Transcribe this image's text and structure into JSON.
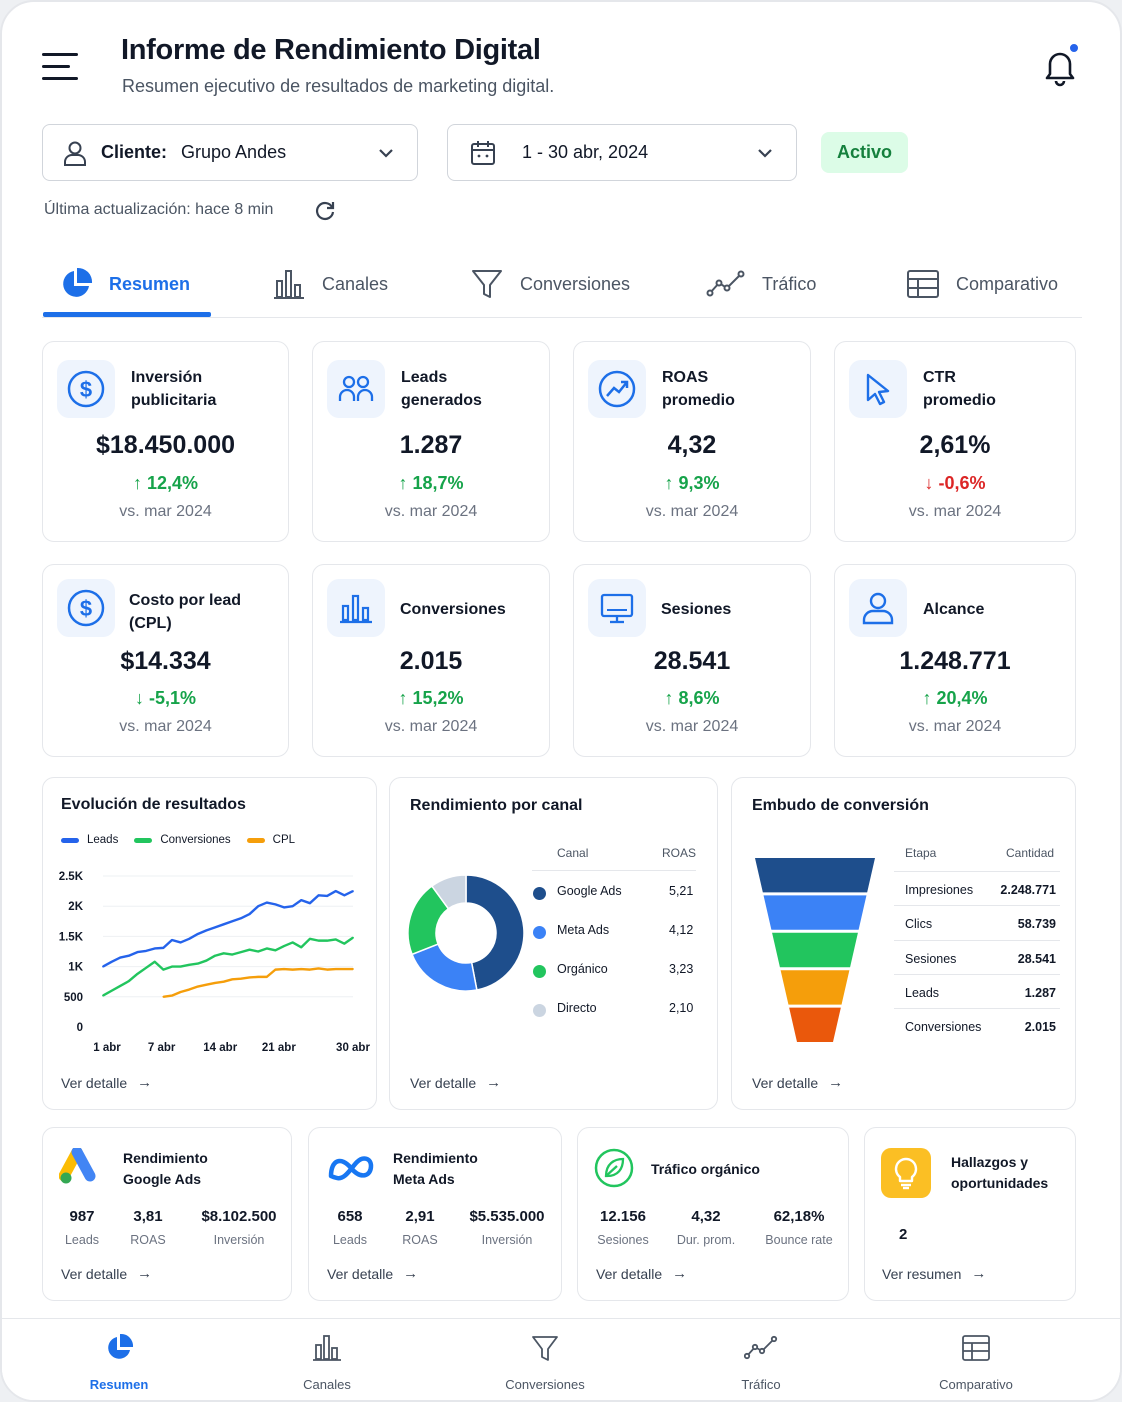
{
  "header": {
    "title": "Informe de Rendimiento Digital",
    "subtitle": "Resumen ejecutivo de resultados de marketing digital."
  },
  "filters": {
    "client_label": "Cliente:",
    "client_value": "Grupo Andes",
    "date_value": "1 - 30 abr, 2024",
    "status_badge": "Activo",
    "last_updated": "Última actualización: hace 8 min"
  },
  "tabs": [
    {
      "label": "Resumen",
      "icon": "pie-chart-icon",
      "active": true
    },
    {
      "label": "Canales",
      "icon": "bar-chart-icon",
      "active": false
    },
    {
      "label": "Conversiones",
      "icon": "funnel-icon",
      "active": false
    },
    {
      "label": "Tráfico",
      "icon": "line-trend-icon",
      "active": false
    },
    {
      "label": "Comparativo",
      "icon": "table-icon",
      "active": false
    }
  ],
  "kpis": [
    {
      "label_line1": "Inversión",
      "label_line2": "publicitaria",
      "value": "$18.450.000",
      "delta": "12,4%",
      "direction": "up",
      "comparison": "vs. mar 2024",
      "icon": "dollar-icon"
    },
    {
      "label_line1": "Leads",
      "label_line2": "generados",
      "value": "1.287",
      "delta": "18,7%",
      "direction": "up",
      "comparison": "vs. mar 2024",
      "icon": "users-icon"
    },
    {
      "label_line1": "ROAS",
      "label_line2": "promedio",
      "value": "4,32",
      "delta": "9,3%",
      "direction": "up",
      "comparison": "vs. mar 2024",
      "icon": "trend-up-icon"
    },
    {
      "label_line1": "CTR",
      "label_line2": "promedio",
      "value": "2,61%",
      "delta": "-0,6%",
      "direction": "down",
      "comparison": "vs. mar 2024",
      "icon": "cursor-icon"
    },
    {
      "label_line1": "Costo por lead",
      "label_line2": "(CPL)",
      "value": "$14.334",
      "delta": "-5,1%",
      "direction": "down-good",
      "comparison": "vs. mar 2024",
      "icon": "dollar-icon"
    },
    {
      "label_line1": "Conversiones",
      "label_line2": "",
      "value": "2.015",
      "delta": "15,2%",
      "direction": "up",
      "comparison": "vs. mar 2024",
      "icon": "bar-chart-icon"
    },
    {
      "label_line1": "Sesiones",
      "label_line2": "",
      "value": "28.541",
      "delta": "8,6%",
      "direction": "up",
      "comparison": "vs. mar 2024",
      "icon": "monitor-icon"
    },
    {
      "label_line1": "Alcance",
      "label_line2": "",
      "value": "1.248.771",
      "delta": "20,4%",
      "direction": "up",
      "comparison": "vs. mar 2024",
      "icon": "user-icon"
    }
  ],
  "evolution": {
    "title": "Evolución de resultados",
    "link": "Ver detalle"
  },
  "channel": {
    "title": "Rendimiento por canal",
    "col_channel": "Canal",
    "col_roas": "ROAS",
    "link": "Ver detalle",
    "rows": [
      {
        "name": "Google Ads",
        "roas": "5,21",
        "color": "#1e4e8c"
      },
      {
        "name": "Meta Ads",
        "roas": "4,12",
        "color": "#3b82f6"
      },
      {
        "name": "Orgánico",
        "roas": "3,23",
        "color": "#22c55e"
      },
      {
        "name": "Directo",
        "roas": "2,10",
        "color": "#cbd5e1"
      }
    ]
  },
  "funnel": {
    "title": "Embudo de conversión",
    "col_stage": "Etapa",
    "col_qty": "Cantidad",
    "link": "Ver detalle",
    "rows": [
      {
        "stage": "Impresiones",
        "qty": "2.248.771",
        "color": "#1e4e8c"
      },
      {
        "stage": "Clics",
        "qty": "58.739",
        "color": "#3b82f6"
      },
      {
        "stage": "Sesiones",
        "qty": "28.541",
        "color": "#22c55e"
      },
      {
        "stage": "Leads",
        "qty": "1.287",
        "color": "#f59e0b"
      },
      {
        "stage": "Conversiones",
        "qty": "2.015",
        "color": "#ea580c"
      }
    ]
  },
  "mini_cards": [
    {
      "title_line1": "Rendimiento",
      "title_line2": "Google Ads",
      "icon": "google-ads-icon",
      "link": "Ver detalle",
      "stats": [
        {
          "v": "987",
          "k": "Leads"
        },
        {
          "v": "3,81",
          "k": "ROAS"
        },
        {
          "v": "$8.102.500",
          "k": "Inversión"
        }
      ]
    },
    {
      "title_line1": "Rendimiento",
      "title_line2": "Meta Ads",
      "icon": "meta-icon",
      "link": "Ver detalle",
      "stats": [
        {
          "v": "658",
          "k": "Leads"
        },
        {
          "v": "2,91",
          "k": "ROAS"
        },
        {
          "v": "$5.535.000",
          "k": "Inversión"
        }
      ]
    },
    {
      "title_line1": "Tráfico orgánico",
      "title_line2": "",
      "icon": "leaf-icon",
      "link": "Ver detalle",
      "stats": [
        {
          "v": "12.156",
          "k": "Sesiones"
        },
        {
          "v": "4,32",
          "k": "Dur. prom."
        },
        {
          "v": "62,18%",
          "k": "Bounce rate"
        }
      ]
    },
    {
      "title_line1": "Hallazgos y",
      "title_line2": "oportunidades",
      "icon": "lightbulb-icon",
      "link": "Ver resumen",
      "count": "2"
    }
  ],
  "bottom_nav": [
    {
      "label": "Resumen",
      "active": true
    },
    {
      "label": "Canales",
      "active": false
    },
    {
      "label": "Conversiones",
      "active": false
    },
    {
      "label": "Tráfico",
      "active": false
    },
    {
      "label": "Comparativo",
      "active": false
    }
  ],
  "colors": {
    "accent": "#1d6fe8",
    "positive": "#16a34a",
    "negative": "#dc2626"
  },
  "chart_data": [
    {
      "type": "line",
      "title": "Evolución de resultados",
      "x_ticks": [
        "1 abr",
        "7 abr",
        "14 abr",
        "21 abr",
        "30 abr"
      ],
      "y_ticks": [
        "2.5K",
        "2K",
        "1.5K",
        "1K",
        "500",
        "0"
      ],
      "ylim": [
        0,
        2500
      ],
      "xlim": [
        1,
        30
      ],
      "grid": "horizontal",
      "legend_position": "top-left",
      "series": [
        {
          "name": "Leads",
          "color": "#2563eb",
          "x": [
            1,
            2,
            3,
            4,
            5,
            6,
            7,
            8,
            9,
            10,
            11,
            12,
            13,
            14,
            15,
            16,
            17,
            18,
            19,
            20,
            21,
            22,
            23,
            24,
            25,
            26,
            27,
            28,
            29,
            30
          ],
          "y": [
            1000,
            1080,
            1150,
            1180,
            1240,
            1260,
            1300,
            1310,
            1440,
            1400,
            1460,
            1540,
            1600,
            1650,
            1700,
            1750,
            1800,
            1870,
            2000,
            2060,
            2030,
            1980,
            2000,
            2100,
            2050,
            2180,
            2170,
            2250,
            2180,
            2250
          ]
        },
        {
          "name": "Conversiones",
          "color": "#22c55e",
          "x": [
            1,
            2,
            3,
            4,
            5,
            6,
            7,
            8,
            9,
            10,
            11,
            12,
            13,
            14,
            15,
            16,
            17,
            18,
            19,
            20,
            21,
            22,
            23,
            24,
            25,
            26,
            27,
            28,
            29,
            30
          ],
          "y": [
            520,
            600,
            680,
            760,
            880,
            980,
            1080,
            950,
            1000,
            1000,
            1030,
            1050,
            1100,
            1180,
            1220,
            1200,
            1240,
            1280,
            1250,
            1300,
            1270,
            1340,
            1400,
            1320,
            1460,
            1430,
            1430,
            1450,
            1380,
            1480
          ]
        },
        {
          "name": "CPL",
          "color": "#f59e0b",
          "x": [
            8,
            9,
            10,
            11,
            12,
            13,
            14,
            15,
            16,
            17,
            18,
            19,
            20,
            21,
            22,
            23,
            24,
            25,
            26,
            27,
            28,
            29,
            30
          ],
          "y": [
            500,
            520,
            580,
            620,
            670,
            700,
            730,
            750,
            790,
            800,
            820,
            830,
            830,
            950,
            960,
            950,
            960,
            950,
            970,
            950,
            960,
            960,
            960
          ]
        }
      ]
    },
    {
      "type": "pie",
      "title": "Rendimiento por canal",
      "categories": [
        "Google Ads",
        "Meta Ads",
        "Orgánico",
        "Directo"
      ],
      "values": [
        47,
        22,
        21,
        10
      ]
    },
    {
      "type": "bar",
      "title": "Embudo de conversión",
      "categories": [
        "Impresiones",
        "Clics",
        "Sesiones",
        "Leads",
        "Conversiones"
      ],
      "values": [
        2248771,
        58739,
        28541,
        1287,
        2015
      ]
    }
  ]
}
